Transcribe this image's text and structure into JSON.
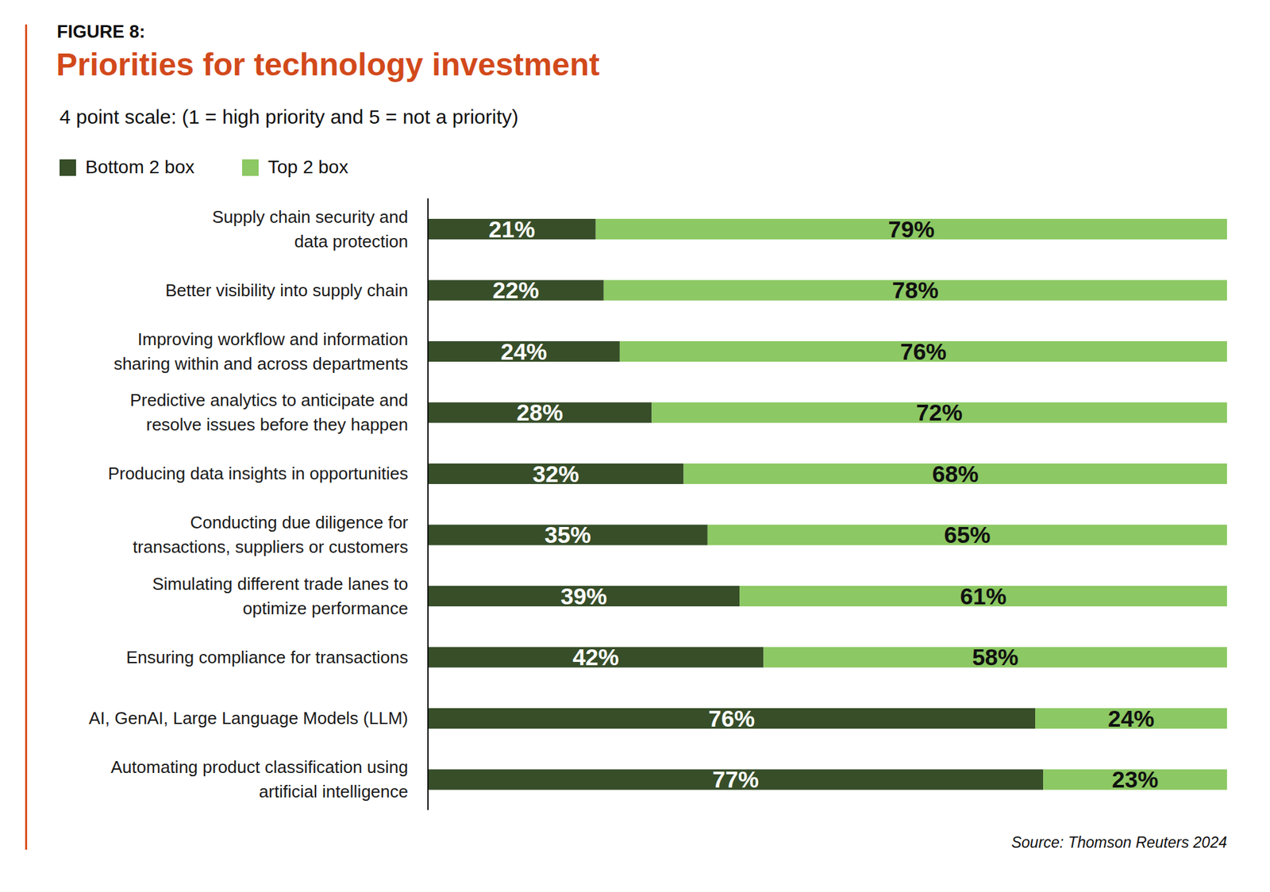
{
  "chart_data": {
    "type": "bar",
    "label": "FIGURE 8:",
    "title": "Priorities for technology investment",
    "subtitle": "4 point scale: (1 = high priority and 5 = not a priority)",
    "source": "Source: Thomson Reuters 2024",
    "orientation": "horizontal",
    "stacked": true,
    "data_labels": true,
    "tick_labels": "y",
    "grid": false,
    "legend": "top-left",
    "xlim": [
      0,
      100
    ],
    "categories": [
      "Supply chain security and\ndata protection",
      "Better visibility into supply chain",
      "Improving workflow and information\nsharing within and across departments",
      "Predictive analytics to anticipate and\nresolve issues before they happen",
      "Producing data insights in opportunities",
      "Conducting due diligence for\ntransactions, suppliers or customers",
      "Simulating different trade lanes to\noptimize performance",
      "Ensuring compliance for transactions",
      "AI, GenAI, Large Language Models (LLM)",
      "Automating product classification using\nartificial intelligence"
    ],
    "series": [
      {
        "name": "Bottom 2 box",
        "color": "#374e29",
        "values": [
          21,
          22,
          24,
          28,
          32,
          35,
          39,
          42,
          76,
          77
        ],
        "value_labels": [
          "21%",
          "22%",
          "24%",
          "28%",
          "32%",
          "35%",
          "39%",
          "42%",
          "76%",
          "77%"
        ]
      },
      {
        "name": "Top 2 box",
        "color": "#8cc863",
        "values": [
          79,
          78,
          76,
          72,
          68,
          65,
          61,
          58,
          24,
          23
        ],
        "value_labels": [
          "79%",
          "78%",
          "76%",
          "72%",
          "68%",
          "65%",
          "61%",
          "58%",
          "24%",
          "23%"
        ]
      }
    ]
  }
}
